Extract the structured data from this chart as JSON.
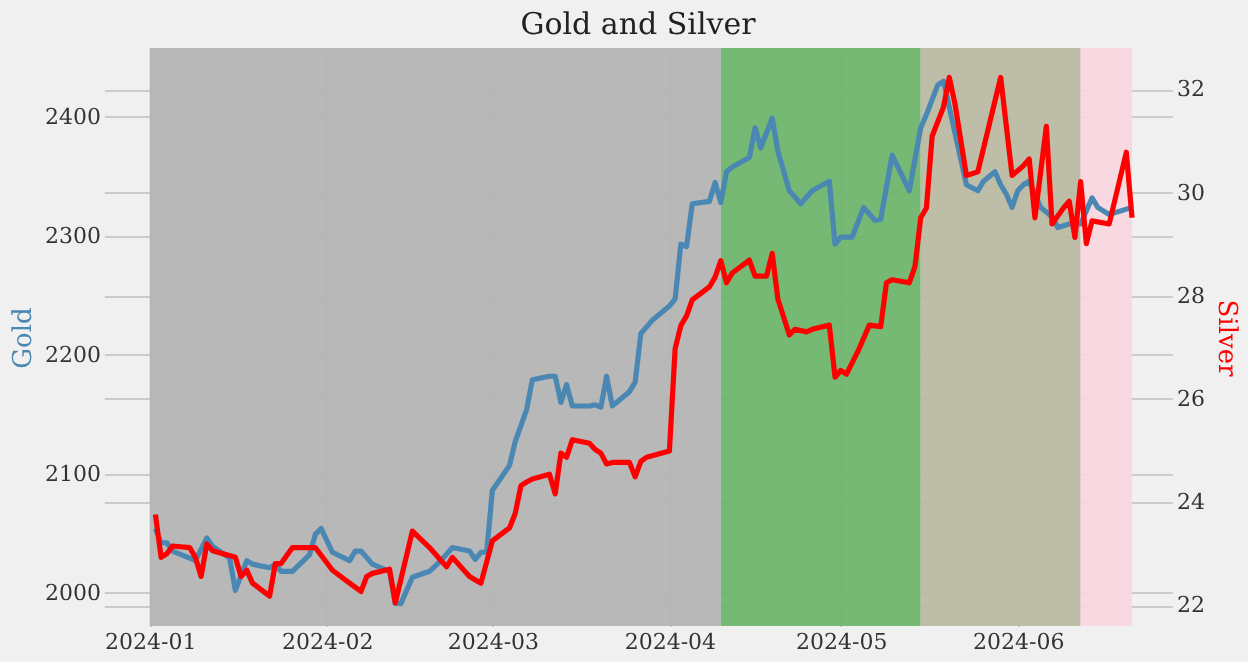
{
  "chart_data": {
    "type": "line",
    "title": "Gold and Silver",
    "ylabel": "Gold",
    "y2label": "Silver",
    "xlim": [
      "2023-12-24",
      "2024-06-28"
    ],
    "xticks": [
      {
        "value": "2024-01-01",
        "label": "2024-01"
      },
      {
        "value": "2024-02-01",
        "label": "2024-02"
      },
      {
        "value": "2024-03-01",
        "label": "2024-03"
      },
      {
        "value": "2024-04-01",
        "label": "2024-04"
      },
      {
        "value": "2024-05-01",
        "label": "2024-05"
      },
      {
        "value": "2024-06-01",
        "label": "2024-06"
      }
    ],
    "ylim": [
      1972,
      2458
    ],
    "yticks": [
      2000,
      2100,
      2200,
      2300,
      2400
    ],
    "y2lim": [
      21.6,
      32.8
    ],
    "y2ticks": [
      22,
      24,
      26,
      28,
      30,
      32
    ],
    "grid": true,
    "legend": false,
    "line_style": "solid",
    "marker": "none",
    "bands": [
      {
        "axis": "x",
        "from": "2024-01-01",
        "to": "2024-04-10",
        "color": "#b4b4b4"
      },
      {
        "axis": "x",
        "from": "2024-04-10",
        "to": "2024-05-15",
        "color": "#6eb56e"
      },
      {
        "axis": "x",
        "from": "2024-05-15",
        "to": "2024-06-12",
        "color": "#bab9a2"
      },
      {
        "axis": "x",
        "from": "2024-06-12",
        "to": "2024-06-21",
        "color": "#f8d7df"
      }
    ],
    "series": [
      {
        "color": "#4a88b3",
        "x": [
          "2024-01-02",
          "2024-01-03",
          "2024-01-04",
          "2024-01-05",
          "2024-01-08",
          "2024-01-09",
          "2024-01-11",
          "2024-01-12",
          "2024-01-15",
          "2024-01-16",
          "2024-01-18",
          "2024-01-19",
          "2024-01-22",
          "2024-01-23",
          "2024-01-24",
          "2024-01-26",
          "2024-01-29",
          "2024-01-30",
          "2024-01-31",
          "2024-02-02",
          "2024-02-05",
          "2024-02-06",
          "2024-02-07",
          "2024-02-09",
          "2024-02-12",
          "2024-02-13",
          "2024-02-14",
          "2024-02-16",
          "2024-02-19",
          "2024-02-21",
          "2024-02-23",
          "2024-02-26",
          "2024-02-27",
          "2024-02-28",
          "2024-02-29",
          "2024-03-01",
          "2024-03-04",
          "2024-03-05",
          "2024-03-07",
          "2024-03-08",
          "2024-03-11",
          "2024-03-12",
          "2024-03-13",
          "2024-03-14",
          "2024-03-15",
          "2024-03-18",
          "2024-03-19",
          "2024-03-20",
          "2024-03-21",
          "2024-03-22",
          "2024-03-25",
          "2024-03-26",
          "2024-03-27",
          "2024-03-29",
          "2024-04-01",
          "2024-04-02",
          "2024-04-03",
          "2024-04-04",
          "2024-04-05",
          "2024-04-08",
          "2024-04-09",
          "2024-04-10",
          "2024-04-11",
          "2024-04-12",
          "2024-04-15",
          "2024-04-16",
          "2024-04-17",
          "2024-04-19",
          "2024-04-20",
          "2024-04-22",
          "2024-04-24",
          "2024-04-26",
          "2024-04-29",
          "2024-04-30",
          "2024-05-01",
          "2024-05-03",
          "2024-05-05",
          "2024-05-07",
          "2024-05-08",
          "2024-05-10",
          "2024-05-13",
          "2024-05-15",
          "2024-05-16",
          "2024-05-18",
          "2024-05-19",
          "2024-05-23",
          "2024-05-25",
          "2024-05-26",
          "2024-05-28",
          "2024-05-29",
          "2024-05-30",
          "2024-05-31",
          "2024-06-01",
          "2024-06-02",
          "2024-06-03",
          "2024-06-05",
          "2024-06-07",
          "2024-06-08",
          "2024-06-10",
          "2024-06-12",
          "2024-06-14",
          "2024-06-15",
          "2024-06-17",
          "2024-06-21"
        ],
        "values": [
          2054,
          2042,
          2042,
          2035,
          2029,
          2027,
          2046,
          2039,
          2029,
          2002,
          2027,
          2024,
          2021,
          2024,
          2018,
          2018,
          2032,
          2049,
          2054,
          2034,
          2027,
          2035,
          2035,
          2024,
          2018,
          1991,
          1991,
          2013,
          2018,
          2027,
          2038,
          2035,
          2028,
          2034,
          2034,
          2086,
          2107,
          2127,
          2154,
          2179,
          2182,
          2182,
          2160,
          2175,
          2157,
          2157,
          2158,
          2156,
          2182,
          2157,
          2169,
          2177,
          2218,
          2229,
          2241,
          2247,
          2293,
          2291,
          2327,
          2329,
          2345,
          2328,
          2354,
          2358,
          2366,
          2391,
          2374,
          2399,
          2371,
          2338,
          2327,
          2338,
          2346,
          2293,
          2299,
          2299,
          2324,
          2313,
          2314,
          2368,
          2338,
          2391,
          2402,
          2427,
          2430,
          2343,
          2338,
          2346,
          2354,
          2343,
          2335,
          2324,
          2338,
          2343,
          2346,
          2324,
          2316,
          2307,
          2310,
          2310,
          2332,
          2324,
          2318,
          2324
        ]
      },
      {
        "color": "#ff0000",
        "axis": "y2",
        "x": [
          "2024-01-02",
          "2024-01-03",
          "2024-01-04",
          "2024-01-05",
          "2024-01-08",
          "2024-01-09",
          "2024-01-10",
          "2024-01-11",
          "2024-01-12",
          "2024-01-16",
          "2024-01-17",
          "2024-01-18",
          "2024-01-19",
          "2024-01-22",
          "2024-01-23",
          "2024-01-24",
          "2024-01-26",
          "2024-01-30",
          "2024-02-02",
          "2024-02-05",
          "2024-02-07",
          "2024-02-08",
          "2024-02-09",
          "2024-02-12",
          "2024-02-13",
          "2024-02-16",
          "2024-02-19",
          "2024-02-21",
          "2024-02-22",
          "2024-02-23",
          "2024-02-26",
          "2024-02-28",
          "2024-03-01",
          "2024-03-04",
          "2024-03-05",
          "2024-03-06",
          "2024-03-07",
          "2024-03-08",
          "2024-03-11",
          "2024-03-12",
          "2024-03-13",
          "2024-03-14",
          "2024-03-15",
          "2024-03-18",
          "2024-03-19",
          "2024-03-20",
          "2024-03-21",
          "2024-03-22",
          "2024-03-25",
          "2024-03-26",
          "2024-03-27",
          "2024-03-28",
          "2024-04-01",
          "2024-04-02",
          "2024-04-03",
          "2024-04-04",
          "2024-04-05",
          "2024-04-08",
          "2024-04-09",
          "2024-04-10",
          "2024-04-11",
          "2024-04-12",
          "2024-04-15",
          "2024-04-16",
          "2024-04-18",
          "2024-04-19",
          "2024-04-20",
          "2024-04-22",
          "2024-04-23",
          "2024-04-25",
          "2024-04-26",
          "2024-04-29",
          "2024-04-30",
          "2024-05-01",
          "2024-05-02",
          "2024-05-04",
          "2024-05-06",
          "2024-05-08",
          "2024-05-09",
          "2024-05-10",
          "2024-05-13",
          "2024-05-14",
          "2024-05-15",
          "2024-05-16",
          "2024-05-17",
          "2024-05-19",
          "2024-05-20",
          "2024-05-21",
          "2024-05-23",
          "2024-05-25",
          "2024-05-29",
          "2024-05-31",
          "2024-06-02",
          "2024-06-03",
          "2024-06-04",
          "2024-06-06",
          "2024-06-07",
          "2024-06-09",
          "2024-06-10",
          "2024-06-11",
          "2024-06-12",
          "2024-06-13",
          "2024-06-14",
          "2024-06-17",
          "2024-06-20",
          "2024-06-21"
        ],
        "values": [
          23.76,
          22.93,
          23.0,
          23.15,
          23.12,
          22.93,
          22.56,
          23.19,
          23.06,
          22.93,
          22.56,
          22.68,
          22.43,
          22.18,
          22.81,
          22.81,
          23.12,
          23.12,
          22.68,
          22.43,
          22.27,
          22.56,
          22.62,
          22.7,
          22.05,
          23.44,
          23.12,
          22.87,
          22.75,
          22.93,
          22.56,
          22.43,
          23.25,
          23.5,
          23.78,
          24.32,
          24.39,
          24.45,
          24.54,
          24.16,
          24.95,
          24.87,
          25.21,
          25.14,
          25.02,
          24.95,
          24.74,
          24.77,
          24.77,
          24.49,
          24.79,
          24.87,
          24.99,
          26.97,
          27.42,
          27.61,
          27.92,
          28.17,
          28.36,
          28.68,
          28.25,
          28.44,
          28.69,
          28.38,
          28.38,
          28.82,
          27.93,
          27.24,
          27.35,
          27.3,
          27.35,
          27.43,
          26.42,
          26.55,
          26.48,
          26.92,
          27.43,
          27.4,
          28.25,
          28.31,
          28.25,
          28.57,
          29.51,
          29.7,
          31.09,
          31.66,
          32.23,
          31.72,
          30.33,
          30.4,
          32.23,
          30.33,
          30.52,
          30.65,
          29.51,
          31.28,
          29.39,
          29.7,
          29.83,
          29.13,
          30.21,
          29.01,
          29.45,
          29.39,
          30.78,
          29.51
        ]
      }
    ]
  }
}
